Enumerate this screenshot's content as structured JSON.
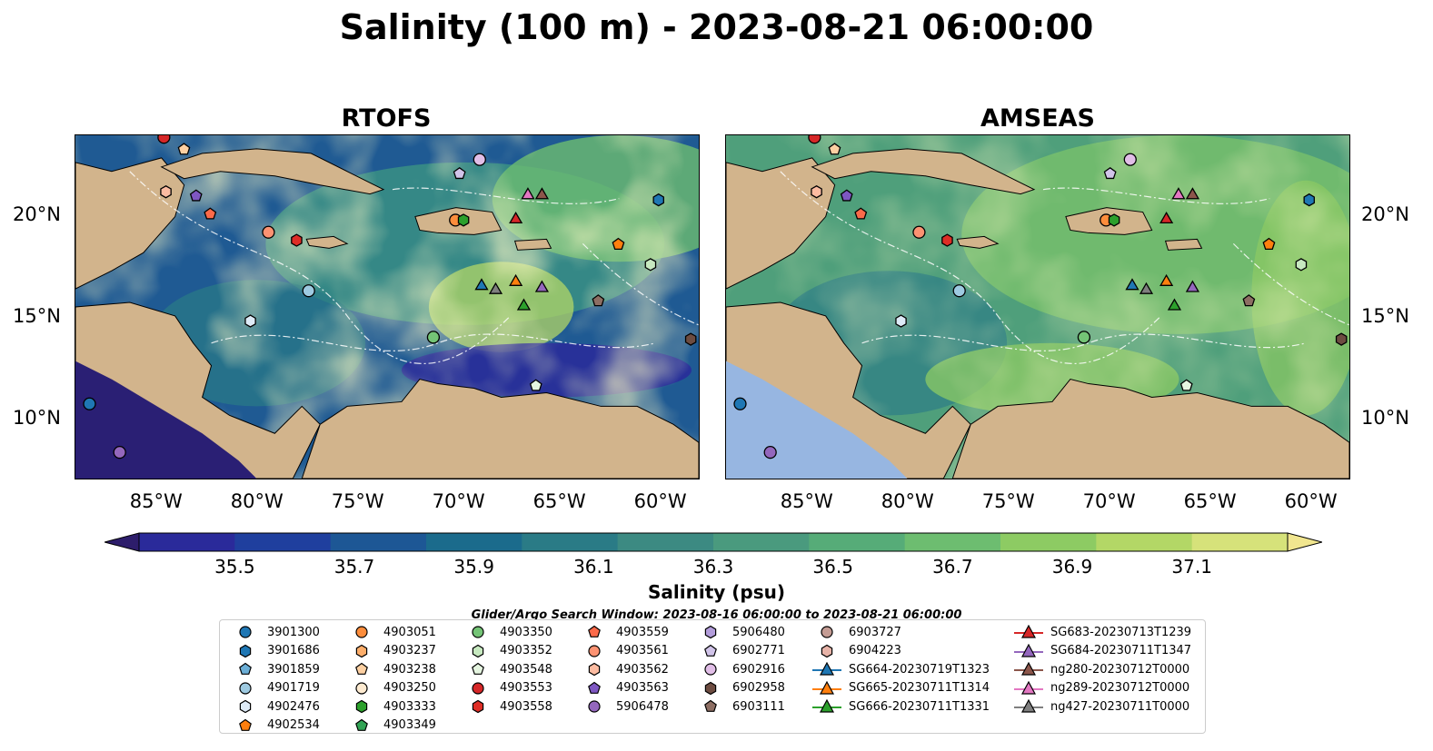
{
  "title": "Salinity (100 m) - 2023-08-21 06:00:00",
  "panels": [
    {
      "name": "RTOFS",
      "style": "rtofs"
    },
    {
      "name": "AMSEAS",
      "style": "amseas"
    }
  ],
  "map": {
    "lon_ticks": [
      "85°W",
      "80°W",
      "75°W",
      "70°W",
      "65°W",
      "60°W"
    ],
    "lat_ticks": [
      "20°N",
      "15°N",
      "10°N"
    ],
    "colors": {
      "land": "#d2b48c",
      "shallow": "#97b6e1"
    }
  },
  "colorbar": {
    "label": "Salinity (psu)",
    "ticks": [
      "35.5",
      "35.7",
      "35.9",
      "36.1",
      "36.3",
      "36.5",
      "36.7",
      "36.9",
      "37.1"
    ],
    "colors": [
      "#2d1d6b",
      "#2a2a9a",
      "#1f3f9e",
      "#1d5795",
      "#1b6b8c",
      "#2a7b86",
      "#3c8a82",
      "#4a9a7e",
      "#56ac78",
      "#6dbd70",
      "#8dcb63",
      "#b3d766",
      "#d6e27a",
      "#f1e68f"
    ]
  },
  "search_window": "Glider/Argo Search Window: 2023-08-16 06:00:00 to 2023-08-21 06:00:00",
  "legend": [
    {
      "label": "3901300",
      "marker": "circle",
      "color": "#1f77b4"
    },
    {
      "label": "3901686",
      "marker": "hexagon",
      "color": "#1f77b4"
    },
    {
      "label": "3901859",
      "marker": "pentagon",
      "color": "#6baed6"
    },
    {
      "label": "4901719",
      "marker": "circle",
      "color": "#9ecae1"
    },
    {
      "label": "4902476",
      "marker": "hexagon",
      "color": "#deebf7"
    },
    {
      "label": "4902534",
      "marker": "pentagon",
      "color": "#ff7f0e"
    },
    {
      "label": "4903051",
      "marker": "circle",
      "color": "#fd8d3c"
    },
    {
      "label": "4903237",
      "marker": "hexagon",
      "color": "#fdae6b"
    },
    {
      "label": "4903238",
      "marker": "pentagon",
      "color": "#fdd0a2"
    },
    {
      "label": "4903250",
      "marker": "circle",
      "color": "#feebd1"
    },
    {
      "label": "4903333",
      "marker": "hexagon",
      "color": "#2ca02c"
    },
    {
      "label": "4903349",
      "marker": "pentagon",
      "color": "#31a354"
    },
    {
      "label": "4903350",
      "marker": "circle",
      "color": "#74c476"
    },
    {
      "label": "4903352",
      "marker": "hexagon",
      "color": "#c7e9c0"
    },
    {
      "label": "4903548",
      "marker": "pentagon",
      "color": "#e5f5e0"
    },
    {
      "label": "4903553",
      "marker": "circle",
      "color": "#d62728"
    },
    {
      "label": "4903558",
      "marker": "hexagon",
      "color": "#de2d26"
    },
    {
      "label": "4903559",
      "marker": "pentagon",
      "color": "#fb6a4a"
    },
    {
      "label": "4903561",
      "marker": "circle",
      "color": "#fc9272"
    },
    {
      "label": "4903562",
      "marker": "hexagon",
      "color": "#fcbba1"
    },
    {
      "label": "4903563",
      "marker": "pentagon",
      "color": "#7e57c2"
    },
    {
      "label": "5906478",
      "marker": "circle",
      "color": "#9467bd"
    },
    {
      "label": "5906480",
      "marker": "hexagon",
      "color": "#b39ddb"
    },
    {
      "label": "6902771",
      "marker": "pentagon",
      "color": "#d1c4e9"
    },
    {
      "label": "6902916",
      "marker": "circle",
      "color": "#e1bee7"
    },
    {
      "label": "6902958",
      "marker": "hexagon",
      "color": "#6d4c41"
    },
    {
      "label": "6903111",
      "marker": "pentagon",
      "color": "#8d6e63"
    },
    {
      "label": "6903727",
      "marker": "circle",
      "color": "#c49c94"
    },
    {
      "label": "6904223",
      "marker": "hexagon",
      "color": "#e7b3a8"
    },
    {
      "label": "SG664-20230719T1323",
      "marker": "triangle-line",
      "color": "#1f77b4"
    },
    {
      "label": "SG665-20230711T1314",
      "marker": "triangle-line",
      "color": "#ff7f0e"
    },
    {
      "label": "SG666-20230711T1331",
      "marker": "triangle-line",
      "color": "#2ca02c"
    },
    {
      "label": "SG683-20230713T1239",
      "marker": "triangle-line",
      "color": "#d62728"
    },
    {
      "label": "SG684-20230711T1347",
      "marker": "triangle-line",
      "color": "#9467bd"
    },
    {
      "label": "ng280-20230712T0000",
      "marker": "triangle-line",
      "color": "#8c564b"
    },
    {
      "label": "ng289-20230712T0000",
      "marker": "triangle-line",
      "color": "#e377c2"
    },
    {
      "label": "ng427-20230711T0000",
      "marker": "triangle-line",
      "color": "#7f7f7f"
    }
  ],
  "chart_data": {
    "type": "heatmap",
    "extent": {
      "lon": [
        -89,
        -58
      ],
      "lat": [
        7,
        24
      ]
    },
    "colorbar_range": [
      35.5,
      37.1
    ],
    "xlabel": "",
    "ylabel": "",
    "observations": [
      {
        "id": "3901686",
        "lon": -60.0,
        "lat": 20.8
      },
      {
        "id": "4902534",
        "lon": -62.0,
        "lat": 18.6
      },
      {
        "id": "4903051",
        "lon": -70.1,
        "lat": 19.8
      },
      {
        "id": "4903333",
        "lon": -69.7,
        "lat": 19.8
      },
      {
        "id": "4903352",
        "lon": -60.4,
        "lat": 17.6
      },
      {
        "id": "4903350",
        "lon": -71.2,
        "lat": 14.0
      },
      {
        "id": "4903548",
        "lon": -66.1,
        "lat": 11.6
      },
      {
        "id": "4903553",
        "lon": -84.6,
        "lat": 23.9
      },
      {
        "id": "4903558",
        "lon": -78.0,
        "lat": 18.8
      },
      {
        "id": "4903559",
        "lon": -82.3,
        "lat": 20.1
      },
      {
        "id": "4903561",
        "lon": -79.4,
        "lat": 19.2
      },
      {
        "id": "4903562",
        "lon": -84.5,
        "lat": 21.2
      },
      {
        "id": "4903563",
        "lon": -83.0,
        "lat": 21.0
      },
      {
        "id": "6902771",
        "lon": -69.9,
        "lat": 22.1
      },
      {
        "id": "6902916",
        "lon": -68.9,
        "lat": 22.8
      },
      {
        "id": "6902958",
        "lon": -58.4,
        "lat": 13.9
      },
      {
        "id": "6903111",
        "lon": -63.0,
        "lat": 15.8
      },
      {
        "id": "4901719",
        "lon": -77.4,
        "lat": 16.3
      },
      {
        "id": "4902476",
        "lon": -80.3,
        "lat": 14.8
      },
      {
        "id": "3901300",
        "lon": -88.3,
        "lat": 10.7
      },
      {
        "id": "5906478",
        "lon": -86.8,
        "lat": 8.3
      },
      {
        "id": "4903238",
        "lon": -83.6,
        "lat": 23.3
      },
      {
        "id": "SG664-20230719T1323",
        "lon": -68.8,
        "lat": 16.6
      },
      {
        "id": "SG665-20230711T1314",
        "lon": -67.1,
        "lat": 16.8
      },
      {
        "id": "SG666-20230711T1331",
        "lon": -66.7,
        "lat": 15.6
      },
      {
        "id": "SG683-20230713T1239",
        "lon": -67.1,
        "lat": 19.9
      },
      {
        "id": "SG684-20230711T1347",
        "lon": -65.8,
        "lat": 16.5
      },
      {
        "id": "ng280-20230712T0000",
        "lon": -65.8,
        "lat": 21.1
      },
      {
        "id": "ng289-20230712T0000",
        "lon": -66.5,
        "lat": 21.1
      },
      {
        "id": "ng427-20230711T0000",
        "lon": -68.1,
        "lat": 16.4
      }
    ]
  }
}
